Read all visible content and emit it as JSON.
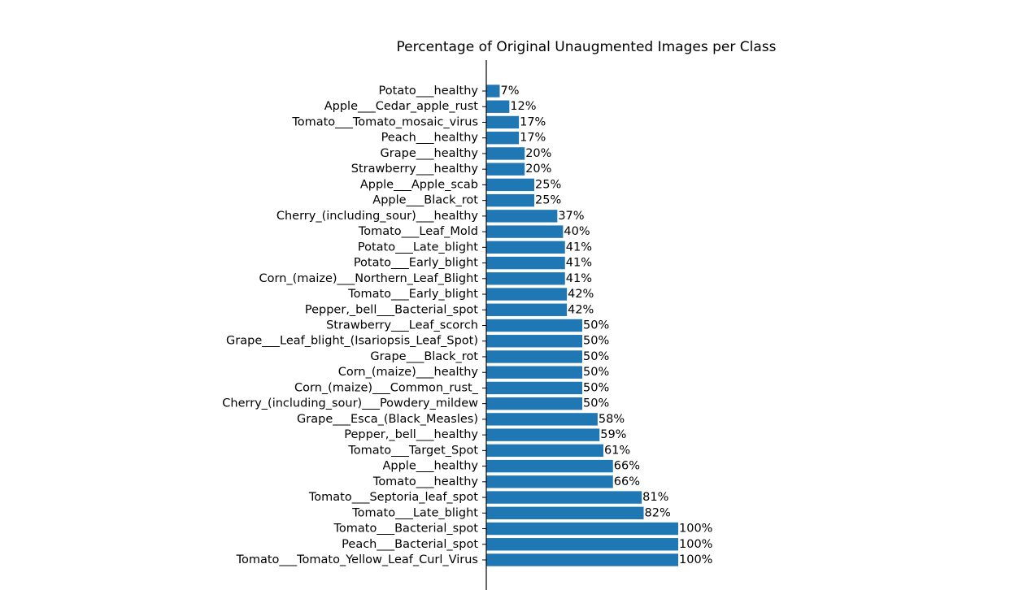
{
  "chart_data": {
    "type": "bar",
    "orientation": "horizontal",
    "title": "Percentage of Original Unaugmented Images per Class",
    "xlabel": "",
    "ylabel": "",
    "value_suffix": "%",
    "xlim": [
      0,
      100
    ],
    "grid": false,
    "bar_color": "#1f77b4",
    "categories": [
      "Potato___healthy",
      "Apple___Cedar_apple_rust",
      "Tomato___Tomato_mosaic_virus",
      "Peach___healthy",
      "Grape___healthy",
      "Strawberry___healthy",
      "Apple___Apple_scab",
      "Apple___Black_rot",
      "Cherry_(including_sour)___healthy",
      "Tomato___Leaf_Mold",
      "Potato___Late_blight",
      "Potato___Early_blight",
      "Corn_(maize)___Northern_Leaf_Blight",
      "Tomato___Early_blight",
      "Pepper,_bell___Bacterial_spot",
      "Strawberry___Leaf_scorch",
      "Grape___Leaf_blight_(Isariopsis_Leaf_Spot)",
      "Grape___Black_rot",
      "Corn_(maize)___healthy",
      "Corn_(maize)___Common_rust_",
      "Cherry_(including_sour)___Powdery_mildew",
      "Grape___Esca_(Black_Measles)",
      "Pepper,_bell___healthy",
      "Tomato___Target_Spot",
      "Apple___healthy",
      "Tomato___healthy",
      "Tomato___Septoria_leaf_spot",
      "Tomato___Late_blight",
      "Tomato___Bacterial_spot",
      "Peach___Bacterial_spot",
      "Tomato___Tomato_Yellow_Leaf_Curl_Virus"
    ],
    "values": [
      7,
      12,
      17,
      17,
      20,
      20,
      25,
      25,
      37,
      40,
      41,
      41,
      41,
      42,
      42,
      50,
      50,
      50,
      50,
      50,
      50,
      58,
      59,
      61,
      66,
      66,
      81,
      82,
      100,
      100,
      100
    ]
  }
}
